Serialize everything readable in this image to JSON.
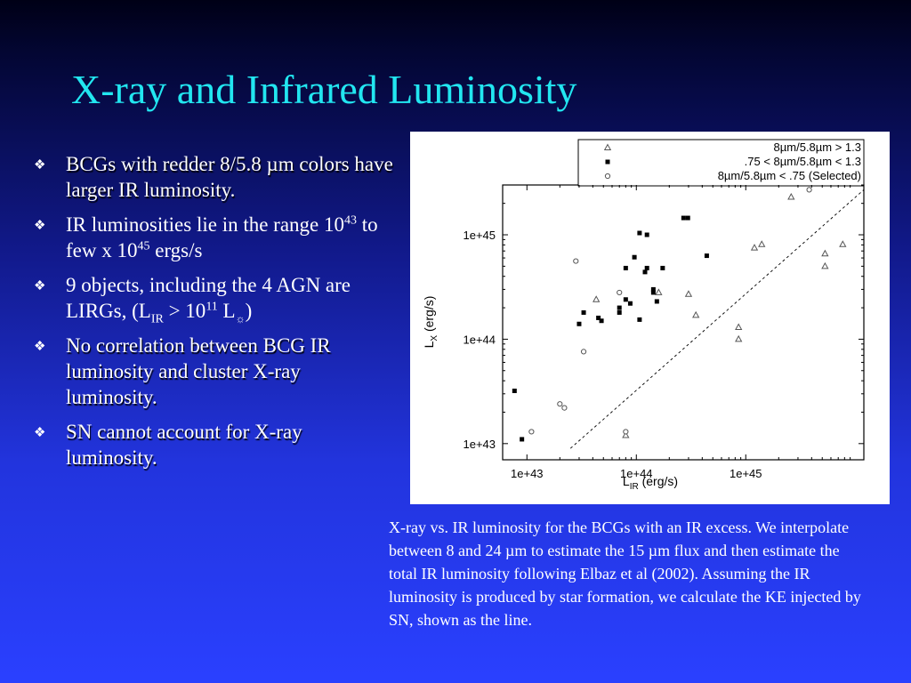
{
  "slide": {
    "title": "X-ray and Infrared Luminosity",
    "bullets": [
      {
        "text": "BCGs with redder 8/5.8 µm colors have larger IR luminosity."
      },
      {
        "p1": "IR luminosities lie in the range 10",
        "s1": "43",
        "p2": " to few x 10",
        "s2": "45",
        "p3": " ergs/s"
      },
      {
        "p1": "9 objects, including the 4 AGN are LIRGs, (L",
        "sub1": "IR",
        "p2": " > 10",
        "s1": "11",
        "p3": " L",
        "sun": "☼",
        "p4": ")"
      },
      {
        "text": "No correlation between BCG IR luminosity and cluster X-ray luminosity."
      },
      {
        "text": "SN cannot account for X-ray luminosity."
      }
    ],
    "caption": "X-ray vs. IR luminosity for the BCGs with an IR excess. We interpolate between 8 and 24 µm to estimate the 15 µm flux and then estimate the total IR luminosity following Elbaz et al (2002). Assuming the IR luminosity is produced by star formation, we calculate the KE injected by SN, shown as the line.",
    "colors": {
      "title": "#22e6f0",
      "text": "#ffffff",
      "bullet": "#ffffff"
    }
  },
  "chart_data": {
    "type": "scatter",
    "x_scale": "log",
    "y_scale": "log",
    "xlim": [
      6e+42,
      1.2e+46
    ],
    "ylim": [
      7e+42,
      3e+45
    ],
    "x_ticks": [
      "1e+43",
      "1e+44",
      "1e+45"
    ],
    "y_ticks": [
      "1e+43",
      "1e+44",
      "1e+45"
    ],
    "xlabel": "L",
    "xlabel_sub": "IR",
    "xlabel_unit": " (erg/s)",
    "ylabel": "L",
    "ylabel_sub": "X",
    "ylabel_unit": " (erg/s)",
    "legend_position": "top-right",
    "series": [
      {
        "name": "8µm/5.8µm > 1.3",
        "marker": "triangle",
        "points": [
          [
            4.3e+43,
            2.4e+44
          ],
          [
            8e+43,
            1.2e+43
          ],
          [
            1.6e+44,
            2.8e+44
          ],
          [
            3e+44,
            2.7e+44
          ],
          [
            3.5e+44,
            1.7e+44
          ],
          [
            8.6e+44,
            1.3e+44
          ],
          [
            8.6e+44,
            1e+44
          ],
          [
            1.2e+45,
            7.5e+44
          ],
          [
            1.4e+45,
            8.1e+44
          ],
          [
            2.6e+45,
            2.3e+45
          ],
          [
            5.3e+45,
            6.6e+44
          ],
          [
            5.3e+45,
            5e+44
          ],
          [
            7.7e+45,
            8.1e+44
          ]
        ]
      },
      {
        "name": ".75 < 8µm/5.8µm < 1.3",
        "marker": "square",
        "points": [
          [
            7.7e+42,
            3.2e+43
          ],
          [
            9e+42,
            1.1e+43
          ],
          [
            3e+43,
            1.4e+44
          ],
          [
            3.3e+43,
            1.8e+44
          ],
          [
            4.5e+43,
            1.6e+44
          ],
          [
            4.8e+43,
            1.5e+44
          ],
          [
            7e+43,
            1.8e+44
          ],
          [
            7e+43,
            2e+44
          ],
          [
            8e+43,
            2.4e+44
          ],
          [
            8e+43,
            4.8e+44
          ],
          [
            8.8e+43,
            2.2e+44
          ],
          [
            9.6e+43,
            6.1e+44
          ],
          [
            1.07e+44,
            1.54e+44
          ],
          [
            1.07e+44,
            1.04e+45
          ],
          [
            1.2e+44,
            4.4e+44
          ],
          [
            1.25e+44,
            4.8e+44
          ],
          [
            1.25e+44,
            1e+45
          ],
          [
            1.43e+44,
            3e+44
          ],
          [
            1.43e+44,
            2.8e+44
          ],
          [
            1.54e+44,
            2.3e+44
          ],
          [
            1.74e+44,
            4.8e+44
          ],
          [
            2.7e+44,
            1.45e+45
          ],
          [
            2.96e+44,
            1.45e+45
          ],
          [
            4.4e+44,
            6.3e+44
          ]
        ]
      },
      {
        "name": "8µm/5.8µm < .75 (Selected)",
        "marker": "circle",
        "points": [
          [
            1.1e+43,
            1.3e+43
          ],
          [
            2e+43,
            2.4e+43
          ],
          [
            2.2e+43,
            2.2e+43
          ],
          [
            2.8e+43,
            5.6e+44
          ],
          [
            3.3e+43,
            7.6e+43
          ],
          [
            7e+43,
            2.8e+44
          ],
          [
            8e+43,
            1.3e+43
          ],
          [
            3.8e+45,
            2.7e+45
          ]
        ]
      }
    ],
    "line": {
      "type": "dashed",
      "from": [
        2.5e+43,
        9e+42
      ],
      "to": [
        1.2e+46,
        2.7e+45
      ]
    }
  }
}
